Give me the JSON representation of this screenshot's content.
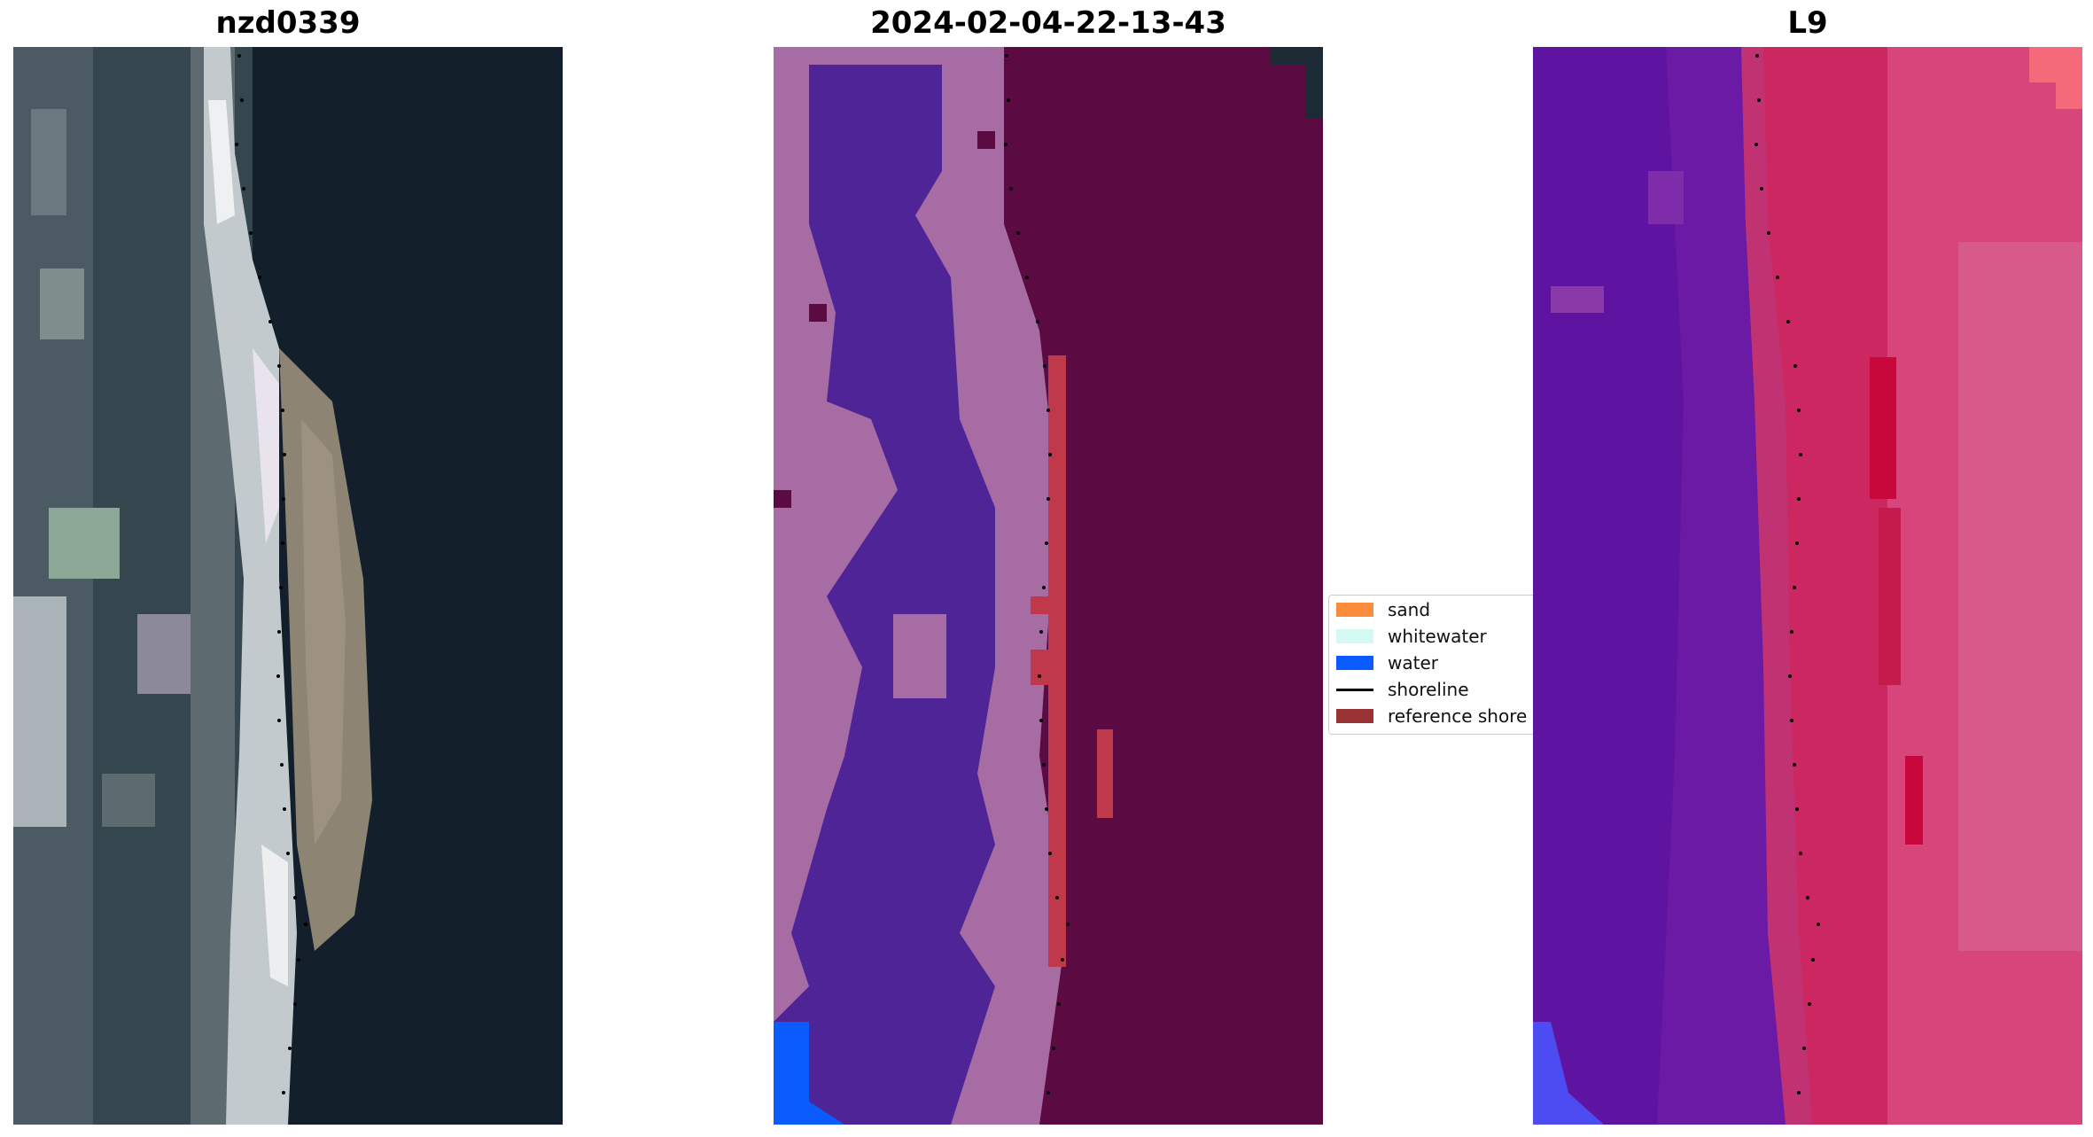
{
  "titles": {
    "left": "nzd0339",
    "center": "2024-02-04-22-13-43",
    "right": "L9"
  },
  "legend": {
    "items": [
      {
        "label": "sand",
        "color": "#fb8c3b",
        "kind": "patch"
      },
      {
        "label": "whitewater",
        "color": "#d4f8f2",
        "kind": "patch"
      },
      {
        "label": "water",
        "color": "#0a5cff",
        "kind": "patch"
      },
      {
        "label": "shoreline",
        "color": "#000000",
        "kind": "line"
      },
      {
        "label": "reference shore",
        "color": "#993333",
        "kind": "patch"
      }
    ]
  },
  "colors": {
    "rgb_water": "#13202c",
    "rgb_land": "#3a4a52",
    "rgb_surf": "#d7dde0",
    "rgb_sand": "#9a8f80",
    "class_land": "#4f2496",
    "class_wet": "#a76ca4",
    "class_ocean": "#5c0b42",
    "class_ref": "#c0394a",
    "class_water": "#0a5cff",
    "mndwi_land": "#6a1aa4",
    "mndwi_water": "#cc2760",
    "mndwi_pink": "#e14a78"
  }
}
